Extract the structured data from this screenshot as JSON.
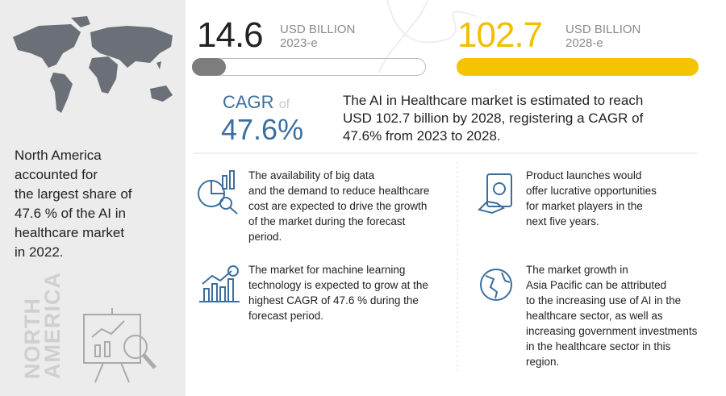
{
  "left": {
    "statement_lines": [
      "North America",
      "accounted for",
      "the largest share of",
      "47.6 % of the AI in",
      "healthcare market",
      "in 2022."
    ],
    "region_lines": [
      "NORTH",
      "AMERICA"
    ]
  },
  "stats": [
    {
      "value": "14.6",
      "unit": "USD BILLION",
      "year": "2023-e"
    },
    {
      "value": "102.7",
      "unit": "USD BILLION",
      "year": "2028-e"
    }
  ],
  "cagr": {
    "label": "CAGR",
    "of": "of",
    "value": "47.6%"
  },
  "summary_lines": [
    "The AI in Healthcare market is estimated to reach",
    "USD 102.7 billion by 2028, registering a CAGR of",
    "47.6% from 2023 to 2028."
  ],
  "insights": [
    {
      "lines": [
        "The availability of big data",
        "and the demand to reduce healthcare",
        "cost are expected to drive the growth",
        "of the market during the forecast",
        "period."
      ]
    },
    {
      "lines": [
        "Product launches would",
        "offer lucrative opportunities",
        "for market players in the",
        "next five years."
      ]
    },
    {
      "lines": [
        "The market for machine learning",
        "technology is expected to grow at the",
        "highest CAGR of 47.6 % during the",
        "forecast period."
      ]
    },
    {
      "lines": [
        "The market growth in",
        "Asia Pacific can be attributed",
        "to the increasing use of AI in the",
        "healthcare sector, as well as",
        "increasing government investments",
        "in the healthcare sector in this",
        "region."
      ]
    }
  ]
}
